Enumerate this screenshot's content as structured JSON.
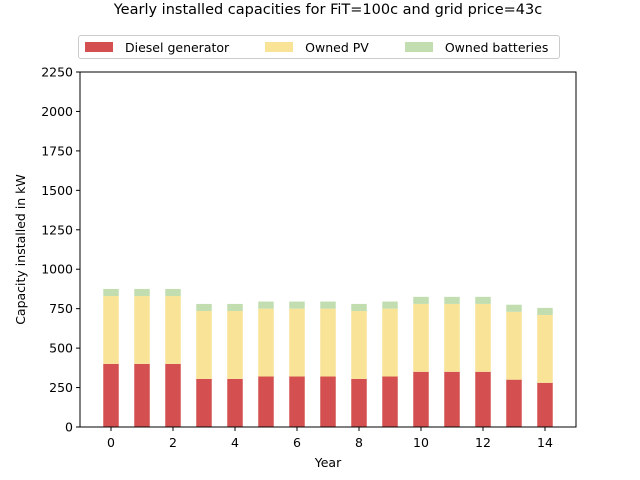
{
  "chart_data": {
    "type": "bar",
    "stacked": true,
    "title": "Yearly installed capacities for FiT=100c and grid price=43c",
    "xlabel": "Year",
    "ylabel": "Capacity installed in kW",
    "categories": [
      0,
      1,
      2,
      3,
      4,
      5,
      6,
      7,
      8,
      9,
      10,
      11,
      12,
      13,
      14
    ],
    "x_ticks": [
      0,
      2,
      4,
      6,
      8,
      10,
      12,
      14
    ],
    "y_ticks": [
      0,
      250,
      500,
      750,
      1000,
      1250,
      1500,
      1750,
      2000,
      2250
    ],
    "xlim": [
      -1.0,
      15.0
    ],
    "ylim": [
      0,
      2250
    ],
    "legend_position": "top-center",
    "series": [
      {
        "name": "Diesel generator",
        "color": "#d45050",
        "values": [
          400,
          400,
          400,
          305,
          305,
          320,
          320,
          320,
          305,
          320,
          350,
          350,
          350,
          300,
          280
        ]
      },
      {
        "name": "Owned PV",
        "color": "#f9e396",
        "values": [
          430,
          430,
          430,
          430,
          430,
          430,
          430,
          430,
          430,
          430,
          430,
          430,
          430,
          430,
          430
        ]
      },
      {
        "name": "Owned batteries",
        "color": "#c2ddb0",
        "values": [
          45,
          45,
          45,
          45,
          45,
          45,
          45,
          45,
          45,
          45,
          45,
          45,
          45,
          45,
          45
        ]
      }
    ]
  }
}
